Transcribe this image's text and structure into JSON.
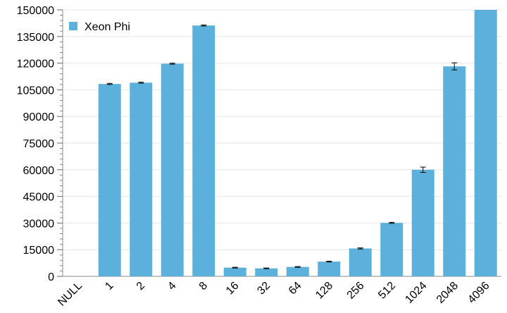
{
  "chart_data": {
    "type": "bar",
    "categories": [
      "NULL",
      "1",
      "2",
      "4",
      "8",
      "16",
      "32",
      "64",
      "128",
      "256",
      "512",
      "1024",
      "2048",
      "4096"
    ],
    "series": [
      {
        "name": "Xeon Phi",
        "color": "#5BB1DB",
        "values": [
          0,
          108300,
          109000,
          119700,
          141200,
          4900,
          4500,
          5300,
          8300,
          15700,
          30100,
          60000,
          118200,
          150000
        ],
        "errors": [
          0,
          300,
          300,
          300,
          300,
          200,
          200,
          200,
          200,
          300,
          300,
          1500,
          2000,
          0
        ]
      }
    ],
    "ylim": [
      0,
      150000
    ],
    "yticks": [
      0,
      15000,
      30000,
      45000,
      60000,
      75000,
      90000,
      105000,
      120000,
      135000,
      150000
    ],
    "ytick_labels": [
      "0",
      "15000",
      "30000",
      "45000",
      "60000",
      "75000",
      "90000",
      "105000",
      "120000",
      "135000",
      "150000"
    ],
    "grid": true,
    "legend_position": "top-left",
    "xlabel": "",
    "ylabel": "",
    "title": ""
  }
}
